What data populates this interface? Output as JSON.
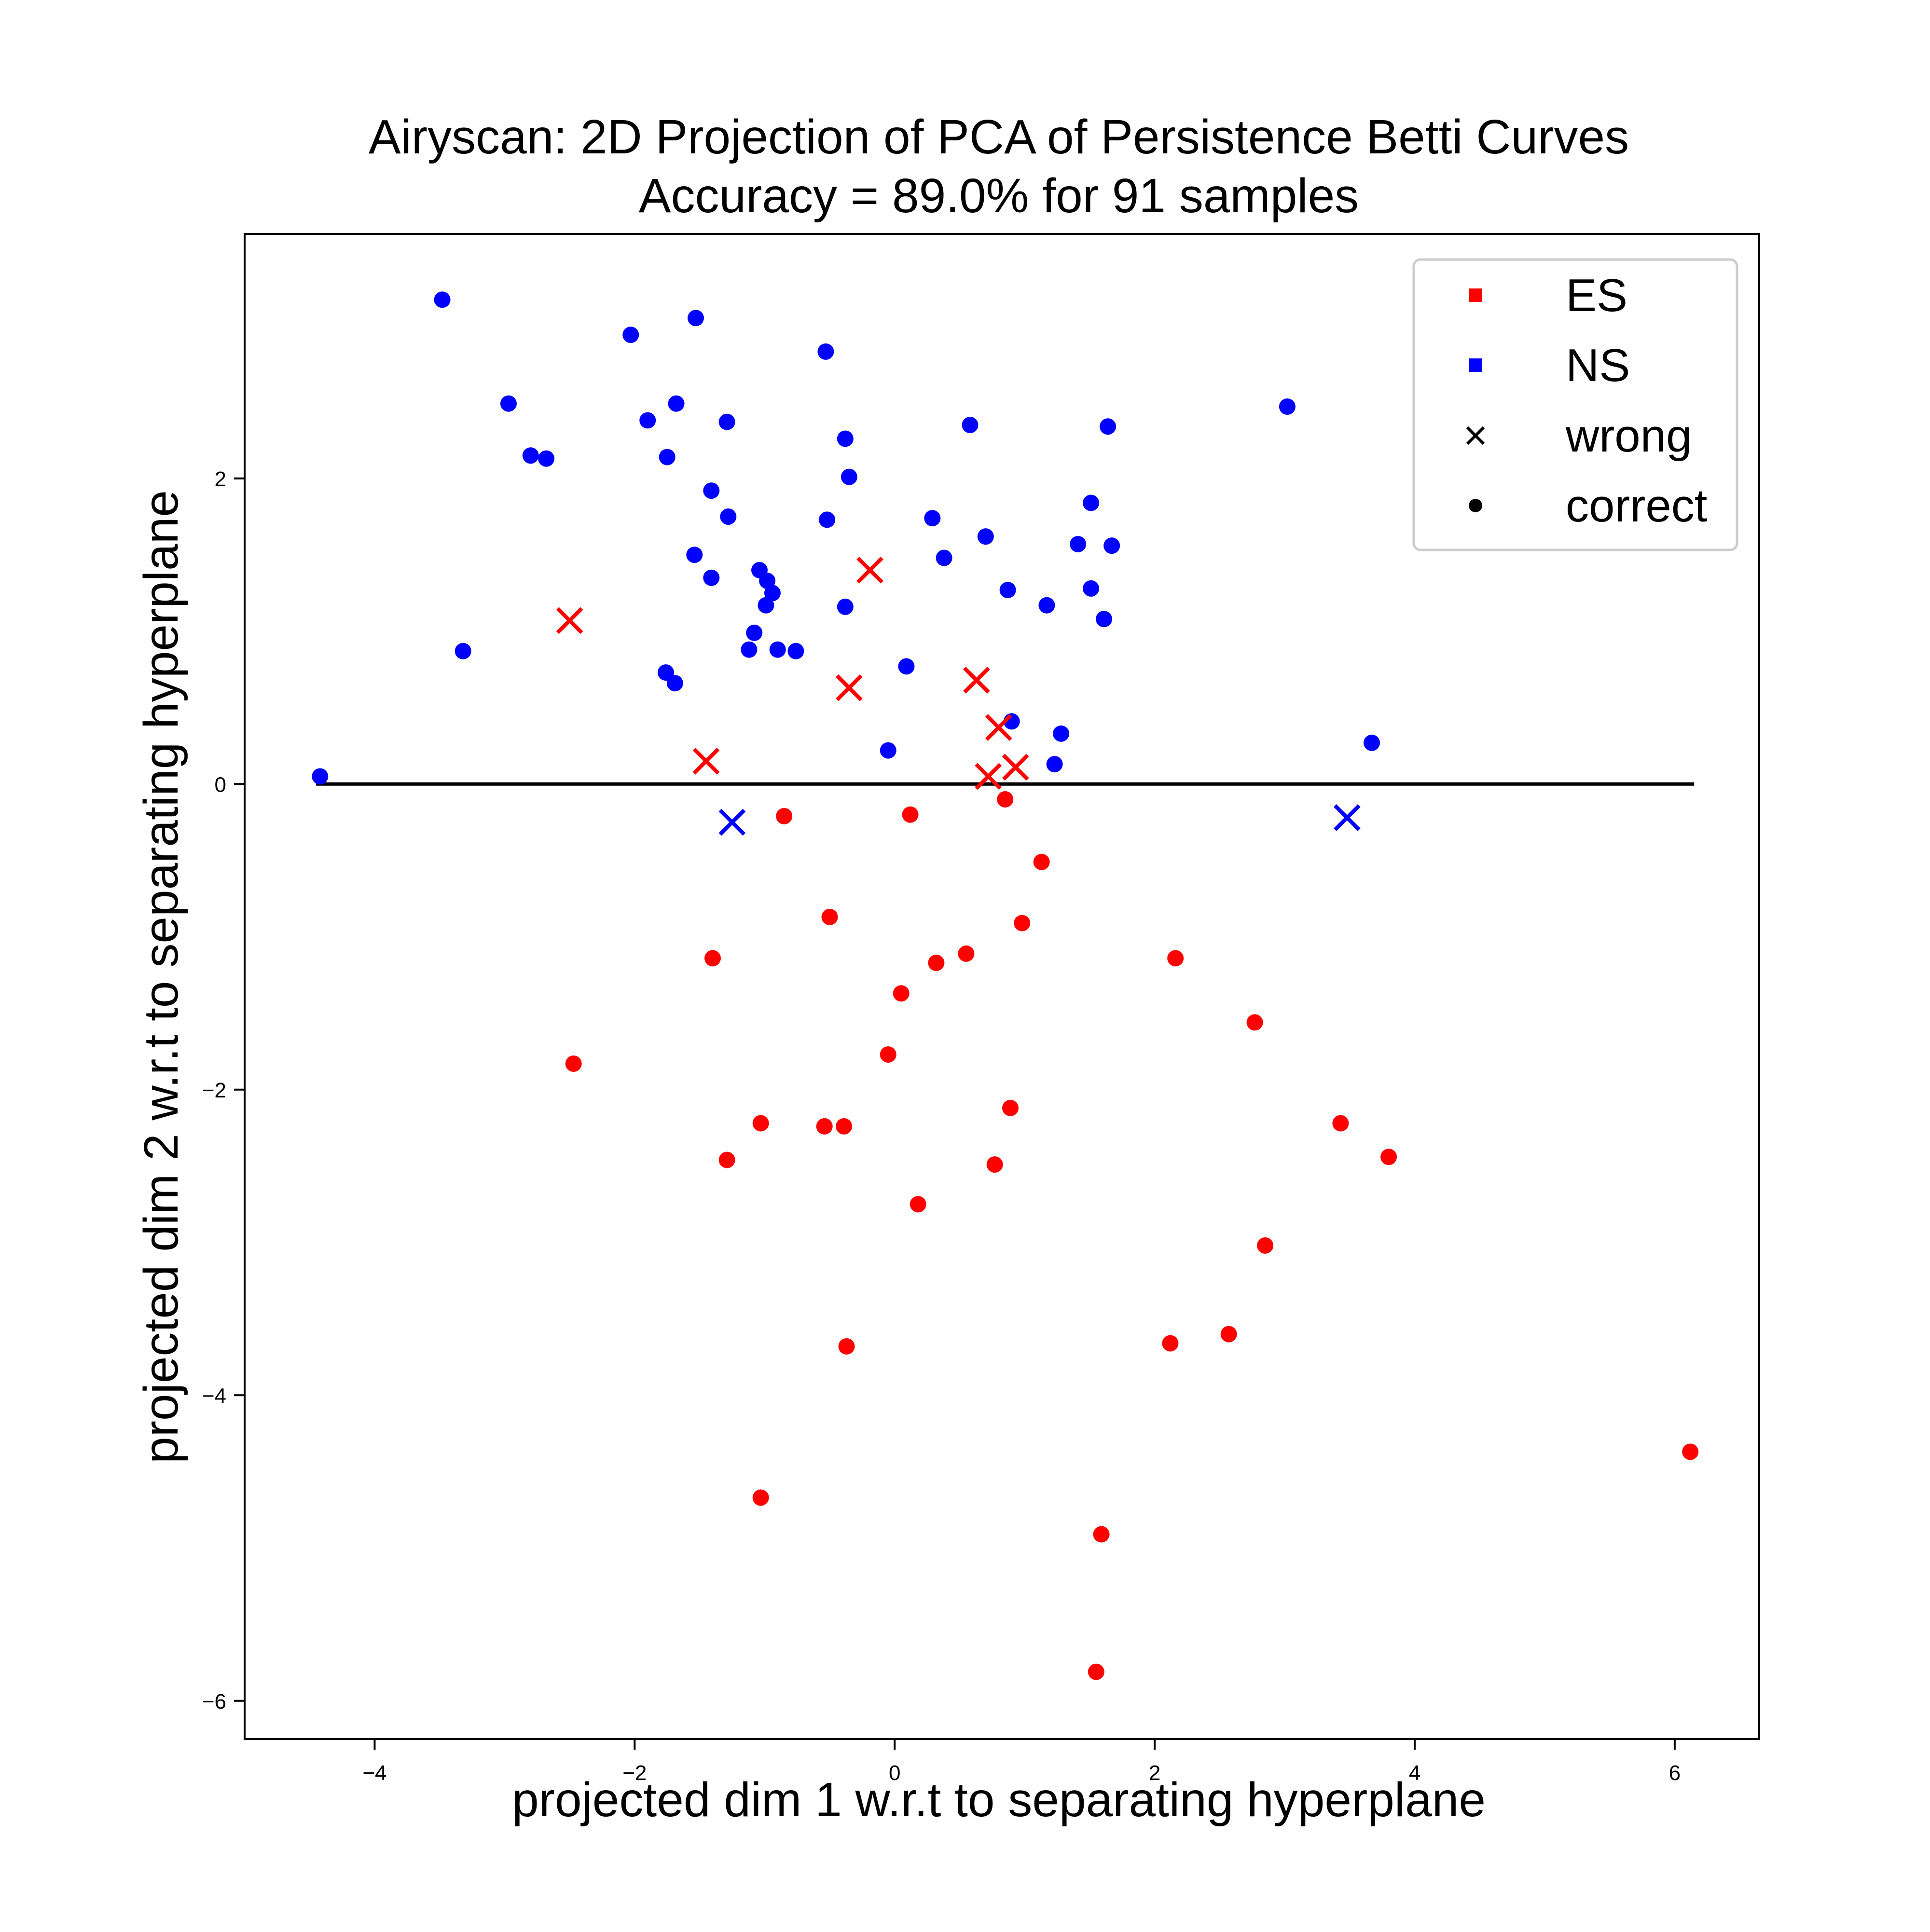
{
  "chart_data": {
    "type": "scatter",
    "title": "Airyscan: 2D Projection of PCA of Persistence Betti Curves",
    "subtitle": "Accuracy = 89.0% for 91 samples",
    "xlabel": "projected dim 1 w.r.t to separating hyperplane",
    "ylabel": "projected dim 2 w.r.t to separating hyperplane",
    "xlim": [
      -5.0,
      6.65
    ],
    "ylim": [
      -6.25,
      3.6
    ],
    "xticks": [
      -4,
      -2,
      0,
      2,
      4,
      6
    ],
    "xtick_labels": [
      "−4",
      "−2",
      "0",
      "2",
      "4",
      "6"
    ],
    "yticks": [
      -6,
      -4,
      -2,
      0,
      2
    ],
    "ytick_labels": [
      "−6",
      "−4",
      "−2",
      "0",
      "2"
    ],
    "grid": false,
    "legend_position": "top-right",
    "legend": [
      {
        "label": "ES",
        "marker": "square",
        "color": "#ff0000"
      },
      {
        "label": "NS",
        "marker": "square",
        "color": "#0000ff"
      },
      {
        "label": "wrong",
        "marker": "x",
        "color": "#000000"
      },
      {
        "label": "correct",
        "marker": "dot",
        "color": "#000000"
      }
    ],
    "separating_line": {
      "x": [
        -4.45,
        6.15
      ],
      "y": [
        0,
        0
      ],
      "color": "#000000"
    },
    "series": [
      {
        "name": "ES",
        "color": "#ff0000",
        "marker": "dot",
        "points": [
          [
            -0.85,
            -0.21
          ],
          [
            0.12,
            -0.2
          ],
          [
            0.85,
            -0.1
          ],
          [
            1.13,
            -0.51
          ],
          [
            -0.5,
            -0.87
          ],
          [
            0.98,
            -0.91
          ],
          [
            -1.4,
            -1.14
          ],
          [
            0.32,
            -1.17
          ],
          [
            0.55,
            -1.11
          ],
          [
            2.16,
            -1.14
          ],
          [
            0.05,
            -1.37
          ],
          [
            2.77,
            -1.56
          ],
          [
            -2.47,
            -1.83
          ],
          [
            -0.05,
            -1.77
          ],
          [
            0.89,
            -2.12
          ],
          [
            -1.03,
            -2.22
          ],
          [
            -0.54,
            -2.24
          ],
          [
            -0.39,
            -2.24
          ],
          [
            3.43,
            -2.22
          ],
          [
            -1.29,
            -2.46
          ],
          [
            0.77,
            -2.49
          ],
          [
            3.8,
            -2.44
          ],
          [
            0.18,
            -2.75
          ],
          [
            2.85,
            -3.02
          ],
          [
            -0.37,
            -3.68
          ],
          [
            2.12,
            -3.66
          ],
          [
            2.57,
            -3.6
          ],
          [
            6.12,
            -4.37
          ],
          [
            -1.03,
            -4.67
          ],
          [
            1.59,
            -4.91
          ],
          [
            1.55,
            -5.81
          ]
        ]
      },
      {
        "name": "NS",
        "color": "#0000ff",
        "marker": "dot",
        "points": [
          [
            -3.48,
            3.17
          ],
          [
            -2.03,
            2.94
          ],
          [
            -1.53,
            3.05
          ],
          [
            -0.53,
            2.83
          ],
          [
            -2.97,
            2.49
          ],
          [
            -1.68,
            2.49
          ],
          [
            -1.9,
            2.38
          ],
          [
            -1.29,
            2.37
          ],
          [
            0.58,
            2.35
          ],
          [
            1.64,
            2.34
          ],
          [
            3.02,
            2.47
          ],
          [
            -2.8,
            2.15
          ],
          [
            -2.68,
            2.13
          ],
          [
            -1.75,
            2.14
          ],
          [
            -0.38,
            2.26
          ],
          [
            -1.41,
            1.92
          ],
          [
            -0.35,
            2.01
          ],
          [
            -1.28,
            1.75
          ],
          [
            -0.52,
            1.73
          ],
          [
            0.29,
            1.74
          ],
          [
            1.51,
            1.84
          ],
          [
            0.7,
            1.62
          ],
          [
            1.41,
            1.57
          ],
          [
            1.67,
            1.56
          ],
          [
            -1.54,
            1.5
          ],
          [
            0.38,
            1.48
          ],
          [
            -1.04,
            1.4
          ],
          [
            -1.41,
            1.35
          ],
          [
            -0.98,
            1.33
          ],
          [
            -0.94,
            1.25
          ],
          [
            0.87,
            1.27
          ],
          [
            1.51,
            1.28
          ],
          [
            -0.99,
            1.17
          ],
          [
            -0.38,
            1.16
          ],
          [
            1.17,
            1.17
          ],
          [
            1.61,
            1.08
          ],
          [
            -3.32,
            0.87
          ],
          [
            -1.08,
            0.99
          ],
          [
            -1.12,
            0.88
          ],
          [
            -0.9,
            0.88
          ],
          [
            -0.76,
            0.87
          ],
          [
            0.09,
            0.77
          ],
          [
            -1.76,
            0.73
          ],
          [
            -1.69,
            0.66
          ],
          [
            0.9,
            0.41
          ],
          [
            1.28,
            0.33
          ],
          [
            3.67,
            0.27
          ],
          [
            -0.05,
            0.22
          ],
          [
            1.23,
            0.13
          ],
          [
            -4.42,
            0.05
          ]
        ]
      },
      {
        "name": "ES",
        "color": "#ff0000",
        "marker": "x",
        "points": [
          [
            -0.19,
            1.4
          ],
          [
            -2.5,
            1.07
          ],
          [
            -0.35,
            0.63
          ],
          [
            0.63,
            0.68
          ],
          [
            0.8,
            0.37
          ],
          [
            -1.45,
            0.15
          ],
          [
            0.93,
            0.11
          ],
          [
            0.72,
            0.05
          ]
        ]
      },
      {
        "name": "NS",
        "color": "#0000ff",
        "marker": "x",
        "points": [
          [
            -1.25,
            -0.25
          ],
          [
            3.48,
            -0.22
          ]
        ]
      }
    ]
  }
}
